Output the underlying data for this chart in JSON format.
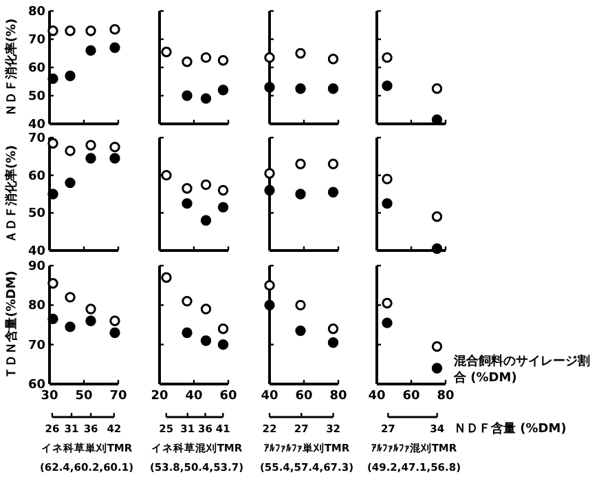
{
  "chart_data": [
    {
      "type": "scatter",
      "ylabel": "ＮＤＦ消化率(%)",
      "x": [
        32,
        42,
        54,
        68
      ],
      "xlim": [
        30,
        70
      ],
      "xticks": [
        30,
        50,
        70
      ],
      "ylim": [
        40,
        80
      ],
      "yticks": [
        40,
        50,
        60,
        70,
        80
      ],
      "tick_labels": "y",
      "marker": "circle",
      "series": [
        {
          "color": "#ffffff",
          "values": [
            73,
            73,
            73,
            73.5
          ]
        },
        {
          "color": "#000000",
          "values": [
            56,
            57,
            66,
            67
          ]
        }
      ]
    },
    {
      "type": "scatter",
      "x": [
        24,
        36,
        47,
        57
      ],
      "xlim": [
        20,
        60
      ],
      "xticks": [
        20,
        40,
        60
      ],
      "ylim": [
        40,
        80
      ],
      "yticks": [
        40,
        50,
        60,
        70,
        80
      ],
      "tick_labels": false,
      "marker": "circle",
      "series": [
        {
          "color": "#ffffff",
          "values": [
            65.5,
            62,
            63.5,
            62.5
          ]
        },
        {
          "color": "#000000",
          "values": [
            null,
            50,
            49,
            52
          ]
        }
      ]
    },
    {
      "type": "scatter",
      "x": [
        40,
        58,
        77
      ],
      "xlim": [
        40,
        80
      ],
      "xticks": [
        40,
        60,
        80
      ],
      "ylim": [
        40,
        80
      ],
      "yticks": [
        40,
        50,
        60,
        70,
        80
      ],
      "tick_labels": false,
      "marker": "circle",
      "series": [
        {
          "color": "#ffffff",
          "values": [
            63.5,
            65,
            63
          ]
        },
        {
          "color": "#000000",
          "values": [
            53,
            52.5,
            52.5
          ]
        }
      ]
    },
    {
      "type": "scatter",
      "x": [
        46,
        75
      ],
      "xlim": [
        40,
        80
      ],
      "xticks": [
        40,
        60,
        80
      ],
      "ylim": [
        40,
        80
      ],
      "yticks": [
        40,
        50,
        60,
        70,
        80
      ],
      "tick_labels": false,
      "marker": "circle",
      "series": [
        {
          "color": "#ffffff",
          "values": [
            63.5,
            52.5
          ]
        },
        {
          "color": "#000000",
          "values": [
            53.5,
            41.5
          ]
        }
      ]
    },
    {
      "type": "scatter",
      "ylabel": "ＡＤＦ消化率(%)",
      "x": [
        32,
        42,
        54,
        68
      ],
      "xlim": [
        30,
        70
      ],
      "xticks": [
        30,
        50,
        70
      ],
      "ylim": [
        40,
        70
      ],
      "yticks": [
        40,
        50,
        60,
        70
      ],
      "tick_labels": "y",
      "marker": "circle",
      "series": [
        {
          "color": "#ffffff",
          "values": [
            68.5,
            66.5,
            68,
            67.5
          ]
        },
        {
          "color": "#000000",
          "values": [
            55,
            58,
            64.5,
            64.5
          ]
        }
      ]
    },
    {
      "type": "scatter",
      "x": [
        24,
        36,
        47,
        57
      ],
      "xlim": [
        20,
        60
      ],
      "xticks": [
        20,
        40,
        60
      ],
      "ylim": [
        40,
        70
      ],
      "yticks": [
        40,
        50,
        60,
        70
      ],
      "tick_labels": false,
      "marker": "circle",
      "series": [
        {
          "color": "#ffffff",
          "values": [
            60,
            56.5,
            57.5,
            56
          ]
        },
        {
          "color": "#000000",
          "values": [
            null,
            52.5,
            48,
            51.5
          ]
        }
      ]
    },
    {
      "type": "scatter",
      "x": [
        40,
        58,
        77
      ],
      "xlim": [
        40,
        80
      ],
      "xticks": [
        40,
        60,
        80
      ],
      "ylim": [
        40,
        70
      ],
      "yticks": [
        40,
        50,
        60,
        70
      ],
      "tick_labels": false,
      "marker": "circle",
      "series": [
        {
          "color": "#ffffff",
          "values": [
            60.5,
            63,
            63
          ]
        },
        {
          "color": "#000000",
          "values": [
            56,
            55,
            55.5
          ]
        }
      ]
    },
    {
      "type": "scatter",
      "x": [
        46,
        75
      ],
      "xlim": [
        40,
        80
      ],
      "xticks": [
        40,
        60,
        80
      ],
      "ylim": [
        40,
        70
      ],
      "yticks": [
        40,
        50,
        60,
        70
      ],
      "tick_labels": false,
      "marker": "circle",
      "series": [
        {
          "color": "#ffffff",
          "values": [
            59,
            49
          ]
        },
        {
          "color": "#000000",
          "values": [
            52.5,
            40.5
          ]
        }
      ]
    },
    {
      "type": "scatter",
      "ylabel": "ＴＤＮ含量(%DM)",
      "x": [
        32,
        42,
        54,
        68
      ],
      "xlim": [
        30,
        70
      ],
      "xticks": [
        30,
        50,
        70
      ],
      "ylim": [
        60,
        90
      ],
      "yticks": [
        60,
        70,
        80,
        90
      ],
      "x2lim": [
        25.3,
        43.1
      ],
      "x2ticks": [
        26,
        31,
        36,
        42
      ],
      "marker": "circle",
      "annotations": [
        "イネ科草単刈TMR",
        "(62.4,60.2,60.1)"
      ],
      "series": [
        {
          "color": "#ffffff",
          "values": [
            85.5,
            82,
            79,
            76
          ]
        },
        {
          "color": "#000000",
          "values": [
            76.5,
            74.5,
            76,
            73
          ]
        }
      ]
    },
    {
      "type": "scatter",
      "x": [
        24,
        36,
        47,
        57
      ],
      "xlim": [
        20,
        60
      ],
      "xticks": [
        20,
        40,
        60
      ],
      "ylim": [
        60,
        90
      ],
      "yticks": [
        60,
        70,
        80,
        90
      ],
      "x2lim": [
        23.1,
        42.5
      ],
      "x2ticks": [
        25,
        31,
        36,
        41
      ],
      "tick_labels": "x",
      "marker": "circle",
      "annotations": [
        "イネ科草混刈TMR",
        "(53.8,50.4,53.7)"
      ],
      "series": [
        {
          "color": "#ffffff",
          "values": [
            87,
            81,
            79,
            74
          ]
        },
        {
          "color": "#000000",
          "values": [
            null,
            73,
            71,
            70
          ]
        }
      ]
    },
    {
      "type": "scatter",
      "x": [
        40,
        58,
        77
      ],
      "xlim": [
        40,
        80
      ],
      "xticks": [
        40,
        60,
        80
      ],
      "ylim": [
        60,
        90
      ],
      "yticks": [
        60,
        70,
        80,
        90
      ],
      "x2lim": [
        22,
        32.8
      ],
      "x2ticks": [
        22,
        27,
        32
      ],
      "tick_labels": "x",
      "marker": "circle",
      "annotations": [
        "ｱﾙﾌｧﾙﾌｧ単刈TMR",
        "(55.4,57.4,67.3)"
      ],
      "series": [
        {
          "color": "#ffffff",
          "values": [
            85,
            80,
            74
          ]
        },
        {
          "color": "#000000",
          "values": [
            80,
            73.5,
            70.5
          ]
        }
      ]
    },
    {
      "type": "scatter",
      "x": [
        46,
        75
      ],
      "xlim": [
        40,
        80
      ],
      "xticks": [
        40,
        60,
        80
      ],
      "ylim": [
        60,
        90
      ],
      "yticks": [
        60,
        70,
        80,
        90
      ],
      "x2lim": [
        25.4,
        35.2
      ],
      "x2ticks": [
        27,
        34
      ],
      "tick_labels": "x",
      "marker": "circle",
      "xlabel": "混合飼料のサイレージ割合 (%DM)",
      "x2label": "ＮＤＦ含量 (%DM)",
      "annotations": [
        "ｱﾙﾌｧﾙﾌｧ混刈TMR",
        "(49.2,47.1,56.8)"
      ],
      "series": [
        {
          "color": "#ffffff",
          "values": [
            80.5,
            69.5
          ]
        },
        {
          "color": "#000000",
          "values": [
            75.5,
            64
          ]
        }
      ]
    }
  ]
}
